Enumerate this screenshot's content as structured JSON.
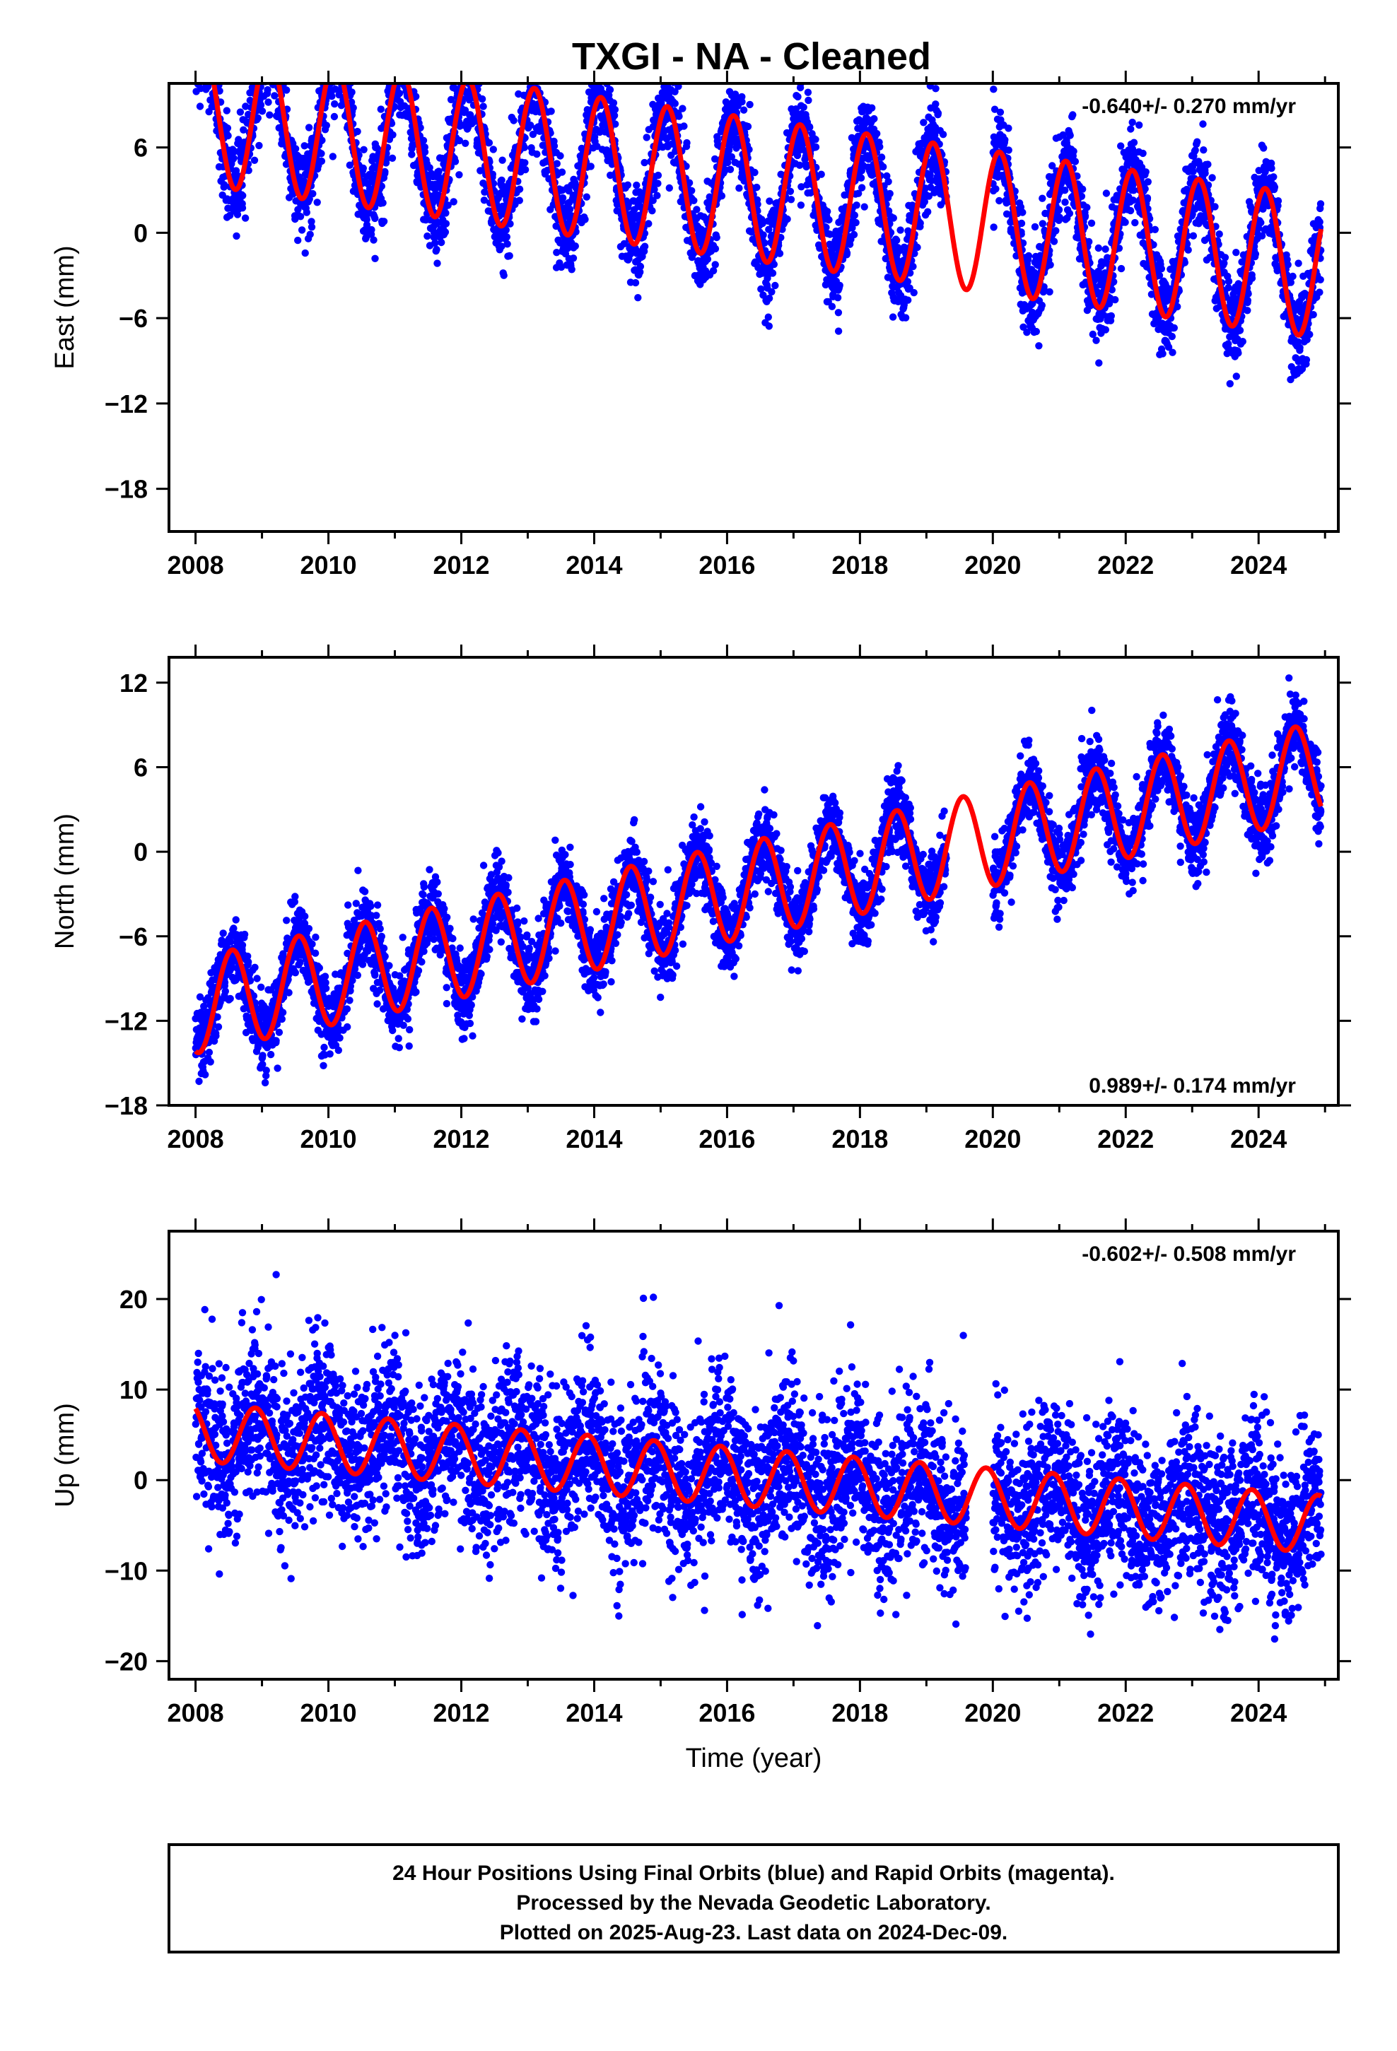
{
  "title": "TXGI  - NA - Cleaned",
  "colors": {
    "points": "#0000ff",
    "model": "#ff0000",
    "frame": "#000000",
    "background": "#ffffff"
  },
  "footer": {
    "line1": "24 Hour Positions Using Final Orbits (blue) and Rapid Orbits (magenta).",
    "line2": "Processed by the Nevada Geodetic Laboratory.",
    "line3": "Plotted on 2025-Aug-23. Last data on 2024-Dec-09."
  },
  "chart_data": [
    {
      "type": "scatter",
      "ylabel": "East (mm)",
      "xlabel": "",
      "rate_text": "-0.640+/- 0.270 mm/yr",
      "rate_position": "top-right",
      "xlim": [
        2007.6,
        2025.2
      ],
      "ylim": [
        -21,
        10.5
      ],
      "xticks": [
        "2008",
        "2010",
        "2012",
        "2014",
        "2016",
        "2018",
        "2020",
        "2022",
        "2024"
      ],
      "yticks": [
        "6",
        "0",
        "−6",
        "−12",
        "−18"
      ],
      "ytick_values": [
        6,
        0,
        -6,
        -12,
        -18
      ],
      "grid": false,
      "data_range": [
        2008.0,
        2024.94
      ],
      "gap": [
        2019.3,
        2020.0
      ],
      "series": [
        {
          "kind": "points",
          "model": {
            "offset": 3.3,
            "rate": -0.64,
            "amp": 4.8,
            "phase_year": 0.1,
            "noise": 1.6,
            "ref_year": 2016.0
          }
        },
        {
          "kind": "line",
          "model": {
            "offset": 3.3,
            "rate": -0.64,
            "amp": 5.0,
            "phase_year": 0.1,
            "ref_year": 2016.0
          }
        }
      ]
    },
    {
      "type": "scatter",
      "ylabel": "North (mm)",
      "xlabel": "",
      "rate_text": "0.989+/- 0.174 mm/yr",
      "rate_position": "bottom-right",
      "xlim": [
        2007.6,
        2025.2
      ],
      "ylim": [
        -18,
        13.8
      ],
      "xticks": [
        "2008",
        "2010",
        "2012",
        "2014",
        "2016",
        "2018",
        "2020",
        "2022",
        "2024"
      ],
      "yticks": [
        "12",
        "6",
        "0",
        "−6",
        "−12",
        "−18"
      ],
      "ytick_values": [
        12,
        6,
        0,
        -6,
        -12,
        -18
      ],
      "grid": false,
      "data_range": [
        2008.0,
        2024.94
      ],
      "gap": [
        2019.3,
        2020.0
      ],
      "series": [
        {
          "kind": "points",
          "model": {
            "offset": -3.0,
            "rate": 0.989,
            "amp": 3.2,
            "phase_year": 0.55,
            "noise": 1.3,
            "ref_year": 2016.0
          }
        },
        {
          "kind": "line",
          "model": {
            "offset": -3.0,
            "rate": 0.989,
            "amp": 3.4,
            "phase_year": 0.55,
            "ref_year": 2016.0
          }
        }
      ]
    },
    {
      "type": "scatter",
      "ylabel": "Up (mm)",
      "xlabel": "Time (year)",
      "rate_text": "-0.602+/- 0.508 mm/yr",
      "rate_position": "top-right",
      "xlim": [
        2007.6,
        2025.2
      ],
      "ylim": [
        -22,
        27.5
      ],
      "xticks": [
        "2008",
        "2010",
        "2012",
        "2014",
        "2016",
        "2018",
        "2020",
        "2022",
        "2024"
      ],
      "yticks": [
        "20",
        "10",
        "0",
        "−10",
        "−20"
      ],
      "ytick_values": [
        20,
        10,
        0,
        -10,
        -20
      ],
      "grid": false,
      "data_range": [
        2008.0,
        2024.94
      ],
      "gap": [
        2019.6,
        2020.0
      ],
      "series": [
        {
          "kind": "points",
          "model": {
            "offset": 0.5,
            "rate": -0.602,
            "amp": 3.0,
            "phase_year": 0.9,
            "noise": 4.5,
            "ref_year": 2016.0
          }
        },
        {
          "kind": "line",
          "model": {
            "offset": 0.5,
            "rate": -0.602,
            "amp": 3.2,
            "phase_year": 0.9,
            "ref_year": 2016.0
          }
        }
      ]
    }
  ]
}
